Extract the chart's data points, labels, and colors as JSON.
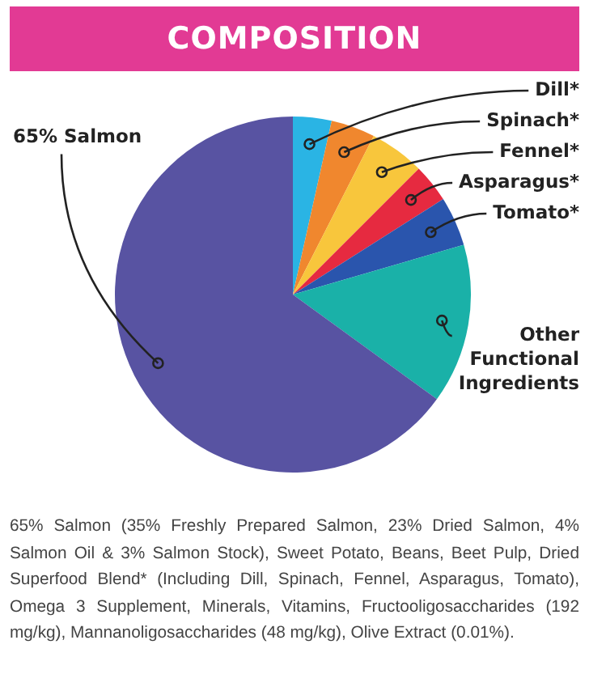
{
  "chart_data": {
    "type": "pie",
    "title": "COMPOSITION",
    "categories": [
      "Dill*",
      "Spinach*",
      "Fennel*",
      "Asparagus*",
      "Tomato*",
      "Other Functional Ingredients",
      "65% Salmon"
    ],
    "values": [
      3.5,
      4,
      5,
      3.5,
      4.5,
      14.5,
      65
    ],
    "colors": [
      "#2ab4e4",
      "#f0872e",
      "#f8c63c",
      "#e62a40",
      "#2a55ad",
      "#1ab1a8",
      "#5853a2"
    ],
    "legend": false,
    "annotations": [
      "65% Salmon (35% Freshly Prepared Salmon, 23% Dried Salmon, 4% Salmon Oil & 3% Salmon Stock), Sweet Potato, Beans, Beet Pulp, Dried Superfood Blend* (Including Dill, Spinach, Fennel, Asparagus, Tomato), Omega 3 Supplement, Minerals, Vitamins, Fructooligosaccharides (192 mg/kg), Mannanoligosaccharides (48 mg/kg), Olive Extract (0.01%)."
    ]
  }
}
